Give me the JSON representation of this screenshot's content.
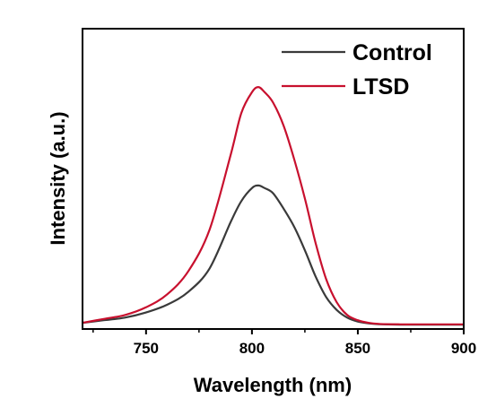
{
  "chart_data": {
    "type": "line",
    "title": "",
    "xlabel": "Wavelength (nm)",
    "ylabel": "Intensity (a.u.)",
    "xlim": [
      720,
      900
    ],
    "ylim": [
      0,
      1.0
    ],
    "x_ticks": [
      750,
      800,
      850,
      900
    ],
    "x_tick_labels": [
      "750",
      "800",
      "850",
      "900"
    ],
    "y_ticks_shown": false,
    "grid": false,
    "legend_position": "top-right",
    "series": [
      {
        "name": "Control",
        "color": "#3a3a3a",
        "x": [
          720,
          730,
          740,
          750,
          760,
          770,
          780,
          790,
          795,
          800,
          803,
          806,
          810,
          815,
          820,
          825,
          830,
          835,
          840,
          845,
          850,
          855,
          860,
          870,
          880,
          900
        ],
        "y": [
          0.01,
          0.02,
          0.03,
          0.05,
          0.08,
          0.13,
          0.22,
          0.4,
          0.48,
          0.53,
          0.54,
          0.53,
          0.51,
          0.45,
          0.38,
          0.29,
          0.19,
          0.11,
          0.06,
          0.03,
          0.015,
          0.008,
          0.005,
          0.003,
          0.003,
          0.003
        ]
      },
      {
        "name": "LTSD",
        "color": "#c8102e",
        "x": [
          720,
          730,
          740,
          750,
          760,
          770,
          780,
          790,
          795,
          800,
          803,
          806,
          810,
          815,
          820,
          825,
          830,
          835,
          840,
          845,
          850,
          855,
          860,
          870,
          880,
          900
        ],
        "y": [
          0.01,
          0.025,
          0.04,
          0.07,
          0.12,
          0.21,
          0.37,
          0.66,
          0.82,
          0.9,
          0.92,
          0.9,
          0.86,
          0.77,
          0.64,
          0.49,
          0.32,
          0.18,
          0.09,
          0.04,
          0.02,
          0.01,
          0.006,
          0.004,
          0.004,
          0.004
        ]
      }
    ]
  }
}
